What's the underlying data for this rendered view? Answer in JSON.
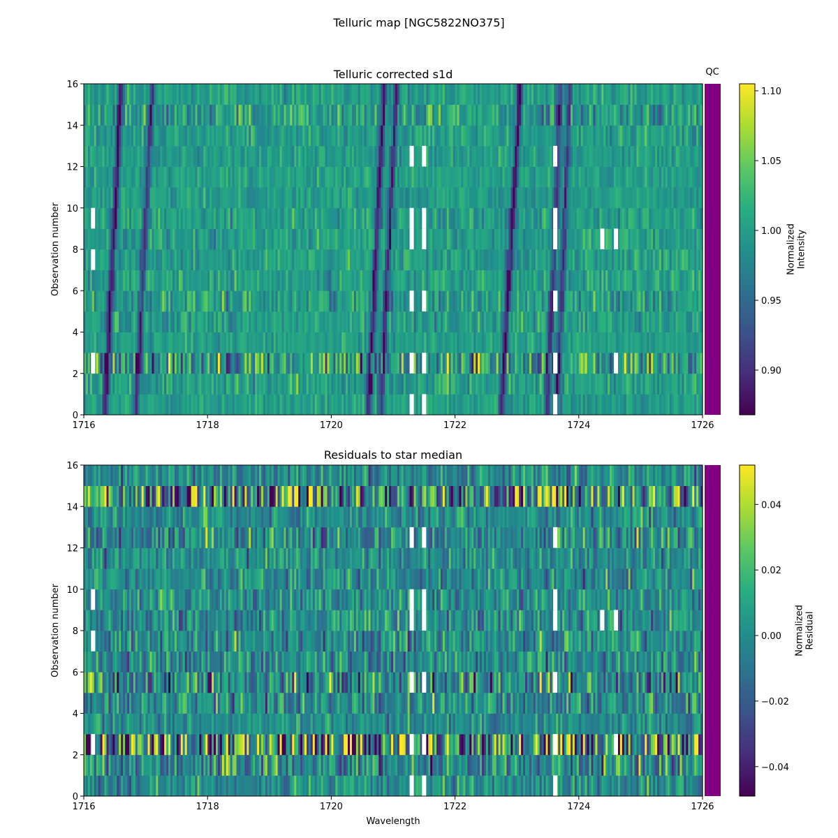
{
  "figure": {
    "suptitle": "Telluric map [NGC5822NO375]"
  },
  "chart_data": [
    {
      "type": "heatmap",
      "title": "Telluric corrected s1d",
      "xlabel": "",
      "ylabel": "Observation number",
      "xlim": [
        1716,
        1726
      ],
      "ylim": [
        0,
        16
      ],
      "x_ticks": [
        "1716",
        "1718",
        "1720",
        "1722",
        "1724",
        "1726"
      ],
      "y_ticks": [
        "0",
        "2",
        "4",
        "6",
        "8",
        "10",
        "12",
        "14",
        "16"
      ],
      "n_observations": 16,
      "colormap": "viridis",
      "color_range": [
        0.868,
        1.105
      ],
      "colorbar_label": "Normalized\nIntensity",
      "colorbar_ticks": [
        "0.90",
        "0.95",
        "1.00",
        "1.05",
        "1.10"
      ],
      "row_noise": [
        0.016,
        0.022,
        0.05,
        0.014,
        0.02,
        0.024,
        0.018,
        0.018,
        0.018,
        0.018,
        0.014,
        0.014,
        0.016,
        0.018,
        0.03,
        0.016
      ],
      "absorption_lines": [
        {
          "x_obs0": 1716.35,
          "x_obs15": 1716.6,
          "depth": 0.13
        },
        {
          "x_obs0": 1716.85,
          "x_obs15": 1717.1,
          "depth": 0.1
        },
        {
          "x_obs0": 1720.6,
          "x_obs15": 1720.85,
          "depth": 0.12
        },
        {
          "x_obs0": 1720.8,
          "x_obs15": 1721.05,
          "depth": 0.11
        },
        {
          "x_obs0": 1722.75,
          "x_obs15": 1723.05,
          "depth": 0.13
        },
        {
          "x_obs0": 1723.5,
          "x_obs15": 1723.7,
          "depth": 0.1
        },
        {
          "x_obs0": 1723.65,
          "x_obs15": 1723.85,
          "depth": 0.09
        }
      ],
      "masked_segments": [
        {
          "x": 1716.15,
          "rows": [
            2,
            7,
            9
          ]
        },
        {
          "x": 1721.3,
          "rows": [
            0,
            2,
            5,
            8,
            9,
            12
          ]
        },
        {
          "x": 1721.5,
          "rows": [
            0,
            2,
            5,
            8,
            9,
            12
          ]
        },
        {
          "x": 1723.62,
          "rows": [
            0,
            2,
            5,
            8,
            9,
            12
          ]
        },
        {
          "x": 1724.38,
          "rows": [
            8
          ]
        },
        {
          "x": 1724.6,
          "rows": [
            2,
            8
          ]
        }
      ],
      "qc_label": "QC",
      "qc_color": "#800080"
    },
    {
      "type": "heatmap",
      "title": "Residuals to star median",
      "xlabel": "Wavelength",
      "ylabel": "Observation number",
      "xlim": [
        1716,
        1726
      ],
      "ylim": [
        0,
        16
      ],
      "x_ticks": [
        "1716",
        "1718",
        "1720",
        "1722",
        "1724",
        "1726"
      ],
      "y_ticks": [
        "0",
        "2",
        "4",
        "6",
        "8",
        "10",
        "12",
        "14",
        "16"
      ],
      "n_observations": 16,
      "colormap": "viridis",
      "color_range": [
        -0.049,
        0.052
      ],
      "colorbar_label": "Normalized\nResidual",
      "colorbar_ticks": [
        "−0.04",
        "−0.02",
        "0.00",
        "0.02",
        "0.04"
      ],
      "row_noise": [
        0.012,
        0.018,
        0.045,
        0.01,
        0.016,
        0.022,
        0.014,
        0.014,
        0.014,
        0.014,
        0.012,
        0.012,
        0.016,
        0.012,
        0.035,
        0.012
      ],
      "masked_segments": [
        {
          "x": 1716.15,
          "rows": [
            2,
            7,
            9
          ]
        },
        {
          "x": 1721.3,
          "rows": [
            0,
            2,
            5,
            8,
            9,
            12
          ]
        },
        {
          "x": 1721.5,
          "rows": [
            0,
            2,
            5,
            8,
            9,
            12
          ]
        },
        {
          "x": 1723.62,
          "rows": [
            0,
            2,
            5,
            8,
            9,
            12
          ]
        },
        {
          "x": 1724.38,
          "rows": [
            8
          ]
        },
        {
          "x": 1724.6,
          "rows": [
            2,
            8
          ]
        }
      ],
      "qc_color": "#800080"
    }
  ]
}
